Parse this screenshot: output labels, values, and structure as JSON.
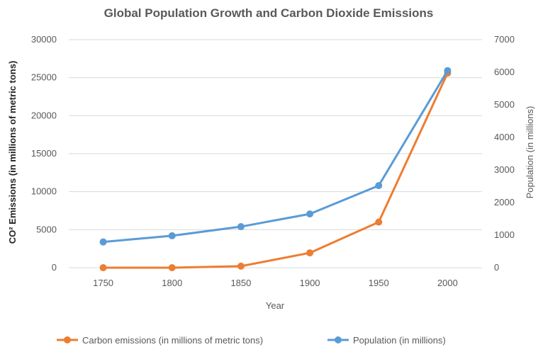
{
  "chart_data": {
    "type": "line",
    "title": "Global Population Growth and Carbon Dioxide Emissions",
    "xlabel": "Year",
    "ylabel_left": "CO² Emissions (in millions of metric tons)",
    "ylabel_right": "Population (in millions)",
    "categories": [
      "1750",
      "1800",
      "1850",
      "1900",
      "1950",
      "2000"
    ],
    "ylim_left": [
      0,
      30000
    ],
    "yticks_left": [
      "0",
      "5000",
      "10000",
      "15000",
      "20000",
      "25000",
      "30000"
    ],
    "ylim_right": [
      0,
      7000
    ],
    "yticks_right": [
      "0",
      "1000",
      "2000",
      "3000",
      "4000",
      "5000",
      "6000",
      "7000"
    ],
    "grid": true,
    "legend_position": "bottom",
    "series": [
      {
        "name": "Carbon emissions (in millions of metric tons)",
        "axis": "left",
        "color": "#ed7d31",
        "values": [
          0,
          0,
          200,
          1950,
          6000,
          25600
        ]
      },
      {
        "name": "Population (in millions)",
        "axis": "right",
        "color": "#5b9bd5",
        "values": [
          790,
          980,
          1260,
          1650,
          2520,
          6050
        ]
      }
    ]
  }
}
